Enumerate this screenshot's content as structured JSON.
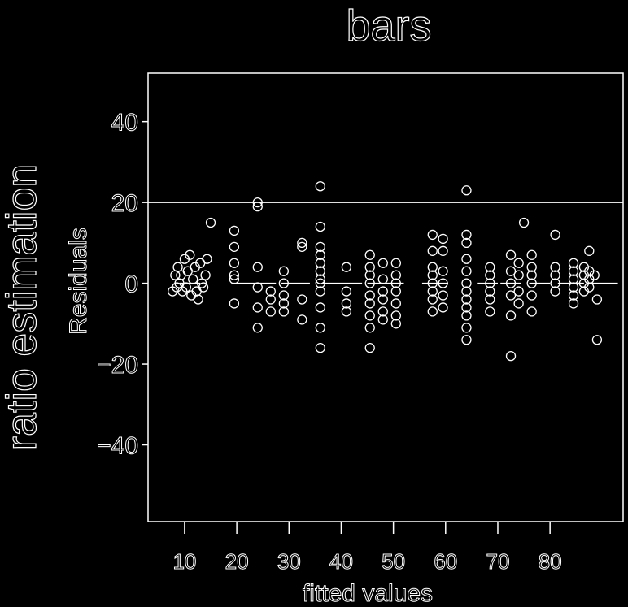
{
  "page": {
    "title": "bars",
    "side_label": "ratio estimation"
  },
  "colors": {
    "background": "#000000",
    "foreground": "#ffffff"
  },
  "chart_data": {
    "type": "scatter",
    "title": "bars",
    "xlabel": "fitted values",
    "ylabel": "Residuals",
    "xlim": [
      3,
      94
    ],
    "ylim": [
      -59,
      52
    ],
    "xticks": [
      10,
      20,
      30,
      40,
      50,
      60,
      70,
      80
    ],
    "yticks": [
      -40,
      -20,
      0,
      20,
      40
    ],
    "xtick_labels": [
      "10",
      "20",
      "30",
      "40",
      "50",
      "60",
      "70",
      "80"
    ],
    "ytick_labels": [
      "−40",
      "−20",
      "0",
      "20",
      "40"
    ],
    "reference_lines": [
      0,
      20
    ],
    "grid": false,
    "points": [
      [
        7.7,
        -2
      ],
      [
        8.2,
        2
      ],
      [
        8.5,
        -1
      ],
      [
        8.7,
        4
      ],
      [
        9.0,
        0
      ],
      [
        9.3,
        2
      ],
      [
        9.6,
        -2
      ],
      [
        10.0,
        6
      ],
      [
        10.3,
        -1
      ],
      [
        10.6,
        3
      ],
      [
        11.0,
        7
      ],
      [
        11.3,
        -3
      ],
      [
        11.6,
        1
      ],
      [
        12.0,
        4
      ],
      [
        12.3,
        -2
      ],
      [
        12.6,
        -4
      ],
      [
        13.0,
        5
      ],
      [
        13.3,
        0
      ],
      [
        13.6,
        -1
      ],
      [
        14.0,
        2
      ],
      [
        14.3,
        6
      ],
      [
        15.0,
        15
      ],
      [
        19.5,
        1
      ],
      [
        19.5,
        -5
      ],
      [
        19.5,
        13
      ],
      [
        19.5,
        9
      ],
      [
        19.5,
        5
      ],
      [
        19.5,
        2
      ],
      [
        24.0,
        20
      ],
      [
        24.0,
        19
      ],
      [
        24.0,
        4
      ],
      [
        24.0,
        -1
      ],
      [
        24.0,
        -6
      ],
      [
        24.0,
        -11
      ],
      [
        26.5,
        -2
      ],
      [
        26.5,
        -4
      ],
      [
        26.5,
        -7
      ],
      [
        29.0,
        3
      ],
      [
        29.0,
        0
      ],
      [
        29.0,
        -3
      ],
      [
        29.0,
        -5
      ],
      [
        29.0,
        -7
      ],
      [
        32.5,
        10
      ],
      [
        32.5,
        9
      ],
      [
        32.5,
        -4
      ],
      [
        32.5,
        -9
      ],
      [
        36.0,
        24
      ],
      [
        36.0,
        14
      ],
      [
        36.0,
        9
      ],
      [
        36.0,
        7
      ],
      [
        36.0,
        5
      ],
      [
        36.0,
        3
      ],
      [
        36.0,
        1
      ],
      [
        36.0,
        0
      ],
      [
        36.0,
        -2
      ],
      [
        36.0,
        -6
      ],
      [
        36.0,
        -11
      ],
      [
        36.0,
        -16
      ],
      [
        41.0,
        4
      ],
      [
        41.0,
        -2
      ],
      [
        41.0,
        -5
      ],
      [
        41.0,
        -7
      ],
      [
        45.5,
        7
      ],
      [
        45.5,
        4
      ],
      [
        45.5,
        2
      ],
      [
        45.5,
        0
      ],
      [
        45.5,
        -3
      ],
      [
        45.5,
        -5
      ],
      [
        45.5,
        -8
      ],
      [
        45.5,
        -11
      ],
      [
        45.5,
        -16
      ],
      [
        48.0,
        5
      ],
      [
        48.0,
        1
      ],
      [
        48.0,
        -2
      ],
      [
        48.0,
        -4
      ],
      [
        48.0,
        -7
      ],
      [
        48.0,
        -9
      ],
      [
        50.5,
        5
      ],
      [
        50.5,
        2
      ],
      [
        50.5,
        0
      ],
      [
        50.5,
        -2
      ],
      [
        50.5,
        -5
      ],
      [
        50.5,
        -8
      ],
      [
        50.5,
        -10
      ],
      [
        57.5,
        12
      ],
      [
        57.5,
        8
      ],
      [
        57.5,
        4
      ],
      [
        57.5,
        2
      ],
      [
        57.5,
        0
      ],
      [
        57.5,
        -2
      ],
      [
        57.5,
        -4
      ],
      [
        57.5,
        -7
      ],
      [
        59.5,
        11
      ],
      [
        59.5,
        8
      ],
      [
        59.5,
        3
      ],
      [
        59.5,
        0
      ],
      [
        59.5,
        -3
      ],
      [
        59.5,
        -6
      ],
      [
        64.0,
        23
      ],
      [
        64.0,
        12
      ],
      [
        64.0,
        10
      ],
      [
        64.0,
        6
      ],
      [
        64.0,
        3
      ],
      [
        64.0,
        0
      ],
      [
        64.0,
        -2
      ],
      [
        64.0,
        -4
      ],
      [
        64.0,
        -6
      ],
      [
        64.0,
        -8
      ],
      [
        64.0,
        -11
      ],
      [
        64.0,
        -14
      ],
      [
        68.5,
        4
      ],
      [
        68.5,
        2
      ],
      [
        68.5,
        0
      ],
      [
        68.5,
        -2
      ],
      [
        68.5,
        -4
      ],
      [
        68.5,
        -7
      ],
      [
        72.5,
        7
      ],
      [
        72.5,
        3
      ],
      [
        72.5,
        0
      ],
      [
        72.5,
        -3
      ],
      [
        72.5,
        -8
      ],
      [
        72.5,
        -18
      ],
      [
        74.0,
        5
      ],
      [
        74.0,
        2
      ],
      [
        74.0,
        -2
      ],
      [
        74.0,
        -5
      ],
      [
        75.0,
        15
      ],
      [
        76.5,
        7
      ],
      [
        76.5,
        4
      ],
      [
        76.5,
        2
      ],
      [
        76.5,
        0
      ],
      [
        76.5,
        -3
      ],
      [
        76.5,
        -7
      ],
      [
        81.0,
        12
      ],
      [
        81.0,
        4
      ],
      [
        81.0,
        2
      ],
      [
        81.0,
        0
      ],
      [
        81.0,
        -2
      ],
      [
        84.5,
        5
      ],
      [
        84.5,
        3
      ],
      [
        84.5,
        1
      ],
      [
        84.5,
        -1
      ],
      [
        84.5,
        -3
      ],
      [
        84.5,
        -5
      ],
      [
        86.5,
        4
      ],
      [
        86.5,
        2
      ],
      [
        86.5,
        0
      ],
      [
        86.5,
        -2
      ],
      [
        87.5,
        8
      ],
      [
        87.5,
        3
      ],
      [
        87.5,
        1
      ],
      [
        87.5,
        -1
      ],
      [
        89.0,
        -4
      ],
      [
        89.0,
        -14
      ],
      [
        88.5,
        2
      ]
    ],
    "zero_line_segments": [
      [
        9.0,
        13.0
      ],
      [
        19.0,
        27.5
      ],
      [
        28.5,
        34.0
      ],
      [
        36.5,
        44.0
      ],
      [
        45.0,
        52.0
      ],
      [
        55.5,
        60.5
      ],
      [
        66.0,
        70.0
      ],
      [
        70.5,
        74.5
      ],
      [
        76.0,
        80.0
      ],
      [
        81.5,
        86.5
      ],
      [
        88.0,
        93.0
      ]
    ]
  }
}
